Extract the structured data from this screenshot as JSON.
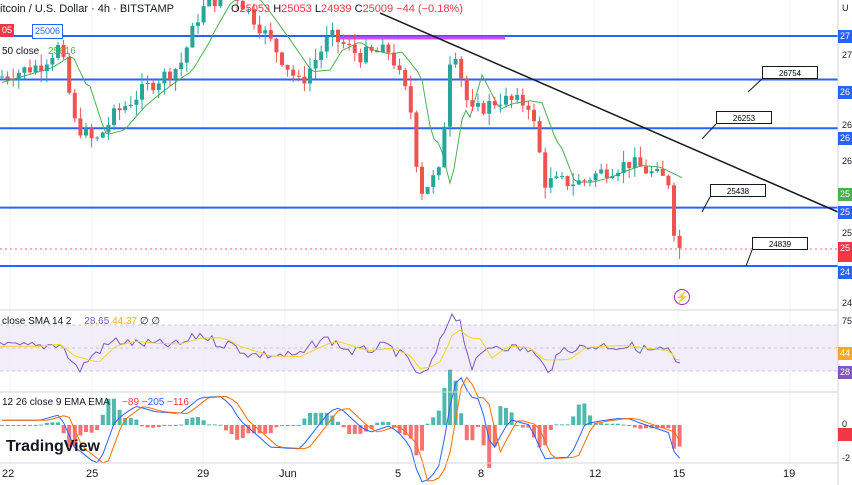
{
  "header": {
    "symbol": "itcoin / U.S. Dollar · 4h · BITSTAMP",
    "ohlc_prefix_o": "O",
    "open": "25053",
    "ohlc_prefix_h": "H",
    "high": "25053",
    "ohlc_prefix_l": "L",
    "low": "24939",
    "ohlc_prefix_c": "C",
    "close": "25009",
    "change": "−44 (−0.18%)",
    "chip_red": "05",
    "chip_blue": "25006",
    "sma_label": "50 close",
    "sma_value": "25616"
  },
  "rsi_legend": {
    "label": "close SMA 14 2",
    "v1": "28.65",
    "v2": "44.37",
    "v3": "∅ ∅"
  },
  "macd_legend": {
    "label": "12 26 close 9 EMA EMA",
    "v1": "−89",
    "v2": "−205",
    "v3": "−116"
  },
  "price_axis": [
    {
      "text": "27"
    },
    {
      "text": "27"
    },
    {
      "text": "26"
    },
    {
      "text": "26"
    },
    {
      "text": "26"
    },
    {
      "text": "25"
    },
    {
      "text": "25"
    },
    {
      "text": "25"
    },
    {
      "text": "24"
    },
    {
      "text": "24"
    }
  ],
  "price_badges": [
    {
      "text": "27",
      "color": "#2962ff"
    },
    {
      "text": "26",
      "color": "#2962ff"
    },
    {
      "text": "26",
      "color": "#2962ff"
    },
    {
      "text": "25",
      "color": "#4caf50"
    },
    {
      "text": "25",
      "color": "#2962ff"
    },
    {
      "text": "25",
      "color": "#f23645"
    },
    {
      "text": "24",
      "color": "#2962ff"
    }
  ],
  "rsi_axis": [
    {
      "text": "75"
    },
    {
      "text": "44"
    },
    {
      "text": "28"
    }
  ],
  "macd_axis": [
    {
      "text": "0"
    },
    {
      "text": "-2"
    }
  ],
  "x_ticks": [
    "22",
    "25",
    "29",
    "Jun",
    "5",
    "8",
    "12",
    "15",
    "19"
  ],
  "callouts": [
    "26754",
    "26253",
    "25438",
    "24839"
  ],
  "logo": "TradingView",
  "chart_data": {
    "type": "candlestick",
    "title": "Bitcoin / U.S. Dollar · 4h · BITSTAMP",
    "support_resistance_levels": [
      27200,
      26754,
      26253,
      25438,
      24839
    ],
    "indicator_values": {
      "sma_50": 25616,
      "rsi": 28.65,
      "rsi_sma": 44.37,
      "macd": -89,
      "signal": -205,
      "hist": -116
    },
    "last": {
      "open": 25053,
      "high": 25053,
      "low": 24939,
      "close": 25009
    }
  }
}
